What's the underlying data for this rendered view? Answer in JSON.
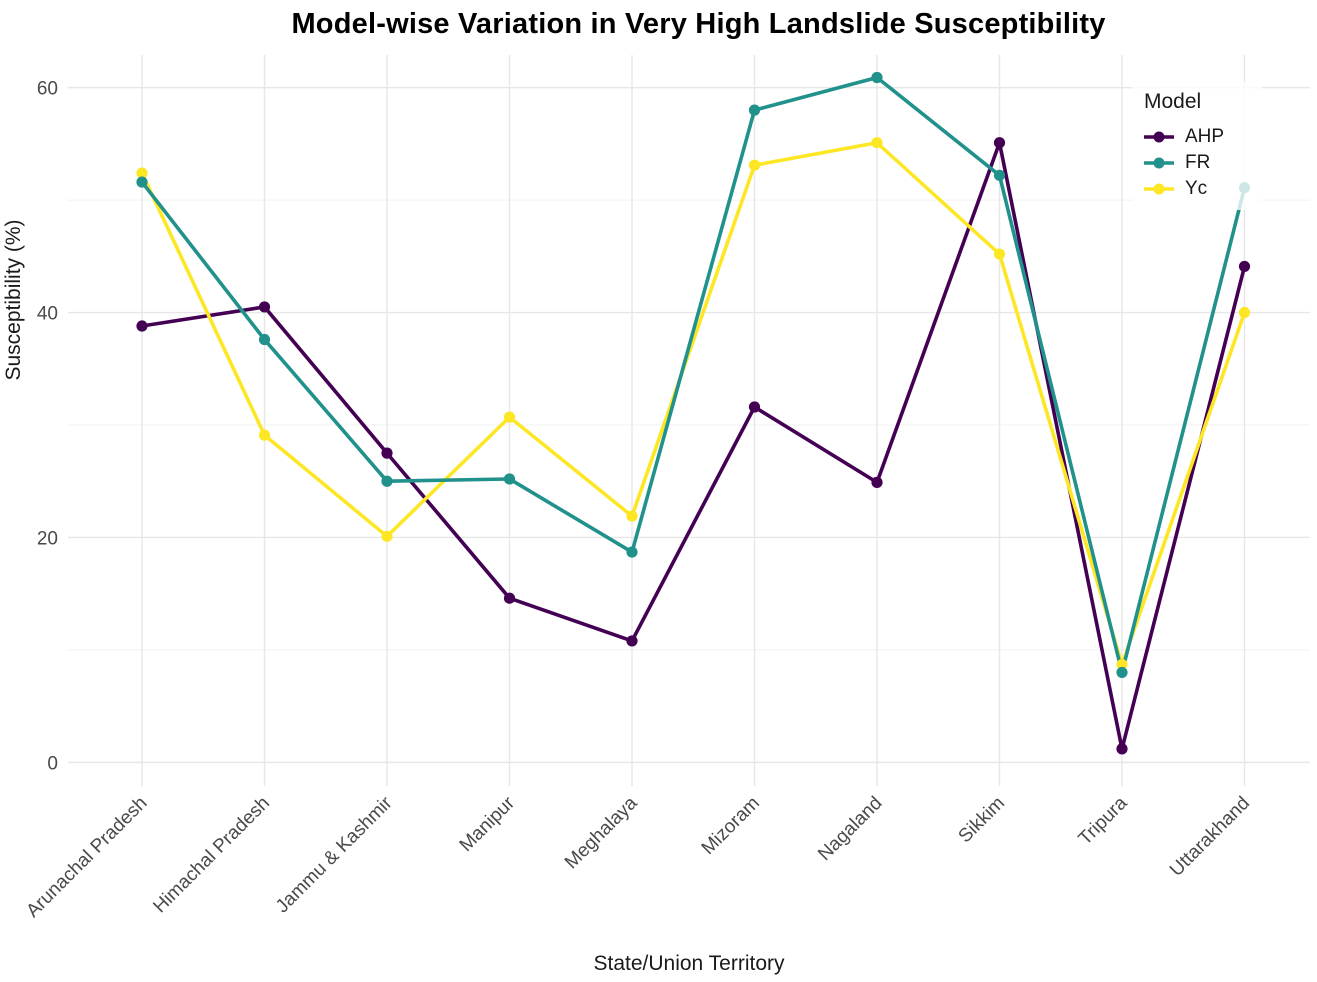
{
  "figure": {
    "title": "Model-wise Variation in Very High Landslide Susceptibility"
  },
  "chart_data": {
    "type": "line",
    "title": "Model-wise Variation in Very High Landslide Susceptibility",
    "xlabel": "State/Union Territory",
    "ylabel": "Susceptibility (%)",
    "categories": [
      "Arunachal Pradesh",
      "Himachal Pradesh",
      "Jammu & Kashmir",
      "Manipur",
      "Meghalaya",
      "Mizoram",
      "Nagaland",
      "Sikkim",
      "Tripura",
      "Uttarakhand"
    ],
    "series": [
      {
        "name": "AHP",
        "color": "#440154",
        "values": [
          38.8,
          40.5,
          27.5,
          14.6,
          10.8,
          31.6,
          24.9,
          55.1,
          1.2,
          44.1
        ]
      },
      {
        "name": "FR",
        "color": "#21918c",
        "values": [
          51.6,
          37.6,
          25.0,
          25.2,
          18.7,
          58.0,
          60.9,
          52.2,
          8.0,
          51.1
        ]
      },
      {
        "name": "Yc",
        "color": "#fde725",
        "values": [
          52.4,
          29.1,
          20.1,
          30.7,
          21.9,
          53.1,
          55.1,
          45.2,
          8.7,
          40.0
        ]
      }
    ],
    "y_major_ticks": [
      0,
      20,
      40,
      60
    ],
    "y_minor_ticks": [
      10,
      30,
      50
    ],
    "ylim": [
      -2.1,
      62.9
    ],
    "grid": true,
    "legend": {
      "title": "Model",
      "position": "inside-top-right"
    }
  },
  "style": {
    "background": "#ffffff",
    "grid_major": "#e7e7e7",
    "grid_minor": "#f2f2f2",
    "tick_label_color": "#4a4a4a",
    "title_color": "#000000",
    "legend_bg": "rgba(255,255,255,0.78)"
  }
}
